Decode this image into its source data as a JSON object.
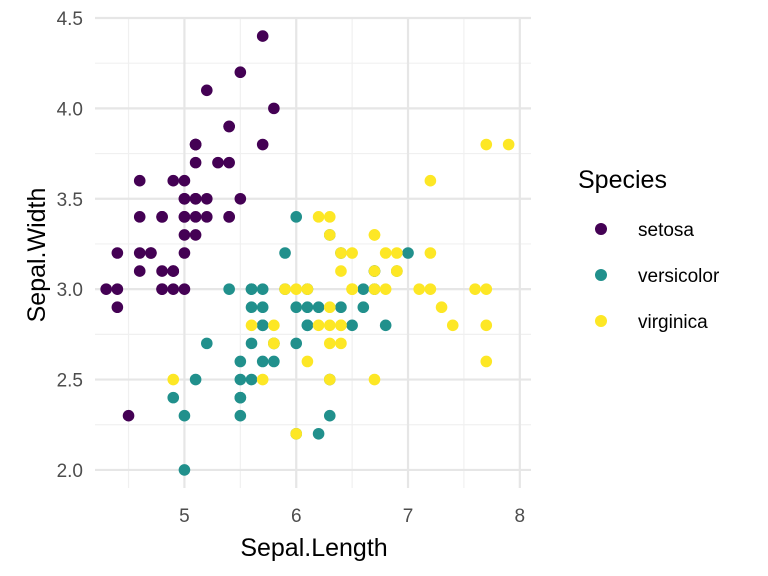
{
  "chart_data": {
    "type": "scatter",
    "xlabel": "Sepal.Length",
    "ylabel": "Sepal.Width",
    "xlim": [
      4.2,
      8.1
    ],
    "ylim": [
      1.9,
      4.5
    ],
    "x_ticks": [
      5,
      6,
      7,
      8
    ],
    "y_ticks": [
      2.0,
      2.5,
      3.0,
      3.5,
      4.0,
      4.5
    ],
    "x_tick_labels": [
      "5",
      "6",
      "7",
      "8"
    ],
    "y_tick_labels": [
      "2.0",
      "2.5",
      "3.0",
      "3.5",
      "4.0",
      "4.5"
    ],
    "grid": true,
    "legend": {
      "title": "Species",
      "position": "right",
      "entries": [
        {
          "label": "setosa",
          "color": "#440154"
        },
        {
          "label": "versicolor",
          "color": "#21908C"
        },
        {
          "label": "virginica",
          "color": "#FDE725"
        }
      ]
    },
    "series": [
      {
        "name": "setosa",
        "color": "#440154",
        "points": [
          [
            5.1,
            3.5
          ],
          [
            4.9,
            3.0
          ],
          [
            4.7,
            3.2
          ],
          [
            4.6,
            3.1
          ],
          [
            5.0,
            3.6
          ],
          [
            5.4,
            3.9
          ],
          [
            4.6,
            3.4
          ],
          [
            5.0,
            3.4
          ],
          [
            4.4,
            2.9
          ],
          [
            4.9,
            3.1
          ],
          [
            5.4,
            3.7
          ],
          [
            4.8,
            3.4
          ],
          [
            4.8,
            3.0
          ],
          [
            4.3,
            3.0
          ],
          [
            5.8,
            4.0
          ],
          [
            5.7,
            4.4
          ],
          [
            5.4,
            3.9
          ],
          [
            5.1,
            3.5
          ],
          [
            5.7,
            3.8
          ],
          [
            5.1,
            3.8
          ],
          [
            5.4,
            3.4
          ],
          [
            5.1,
            3.7
          ],
          [
            4.6,
            3.6
          ],
          [
            5.1,
            3.3
          ],
          [
            4.8,
            3.4
          ],
          [
            5.0,
            3.0
          ],
          [
            5.0,
            3.4
          ],
          [
            5.2,
            3.5
          ],
          [
            5.2,
            3.4
          ],
          [
            4.7,
            3.2
          ],
          [
            4.8,
            3.1
          ],
          [
            5.4,
            3.4
          ],
          [
            5.2,
            4.1
          ],
          [
            5.5,
            4.2
          ],
          [
            4.9,
            3.1
          ],
          [
            5.0,
            3.2
          ],
          [
            5.5,
            3.5
          ],
          [
            4.9,
            3.6
          ],
          [
            4.4,
            3.0
          ],
          [
            5.1,
            3.4
          ],
          [
            5.0,
            3.5
          ],
          [
            4.5,
            2.3
          ],
          [
            4.4,
            3.2
          ],
          [
            5.0,
            3.5
          ],
          [
            5.1,
            3.8
          ],
          [
            4.8,
            3.0
          ],
          [
            5.1,
            3.8
          ],
          [
            4.6,
            3.2
          ],
          [
            5.3,
            3.7
          ],
          [
            5.0,
            3.3
          ]
        ]
      },
      {
        "name": "versicolor",
        "color": "#21908C",
        "points": [
          [
            7.0,
            3.2
          ],
          [
            6.4,
            3.2
          ],
          [
            6.9,
            3.1
          ],
          [
            5.5,
            2.3
          ],
          [
            6.5,
            2.8
          ],
          [
            5.7,
            2.8
          ],
          [
            6.3,
            3.3
          ],
          [
            4.9,
            2.4
          ],
          [
            6.6,
            2.9
          ],
          [
            5.2,
            2.7
          ],
          [
            5.0,
            2.0
          ],
          [
            5.9,
            3.0
          ],
          [
            6.0,
            2.2
          ],
          [
            6.1,
            2.9
          ],
          [
            5.6,
            2.9
          ],
          [
            6.7,
            3.1
          ],
          [
            5.6,
            3.0
          ],
          [
            5.8,
            2.7
          ],
          [
            6.2,
            2.2
          ],
          [
            5.6,
            2.5
          ],
          [
            5.9,
            3.2
          ],
          [
            6.1,
            2.8
          ],
          [
            6.3,
            2.5
          ],
          [
            6.1,
            2.8
          ],
          [
            6.4,
            2.9
          ],
          [
            6.6,
            3.0
          ],
          [
            6.8,
            2.8
          ],
          [
            6.7,
            3.0
          ],
          [
            6.0,
            2.9
          ],
          [
            5.7,
            2.6
          ],
          [
            5.5,
            2.4
          ],
          [
            5.5,
            2.4
          ],
          [
            5.8,
            2.7
          ],
          [
            6.0,
            2.7
          ],
          [
            5.4,
            3.0
          ],
          [
            6.0,
            3.4
          ],
          [
            6.7,
            3.1
          ],
          [
            6.3,
            2.3
          ],
          [
            5.6,
            3.0
          ],
          [
            5.5,
            2.5
          ],
          [
            5.5,
            2.6
          ],
          [
            6.1,
            3.0
          ],
          [
            5.8,
            2.6
          ],
          [
            5.0,
            2.3
          ],
          [
            5.6,
            2.7
          ],
          [
            5.7,
            3.0
          ],
          [
            5.7,
            2.9
          ],
          [
            6.2,
            2.9
          ],
          [
            5.1,
            2.5
          ],
          [
            5.7,
            2.8
          ]
        ]
      },
      {
        "name": "virginica",
        "color": "#FDE725",
        "points": [
          [
            6.3,
            3.3
          ],
          [
            5.8,
            2.7
          ],
          [
            7.1,
            3.0
          ],
          [
            6.3,
            2.9
          ],
          [
            6.5,
            3.0
          ],
          [
            7.6,
            3.0
          ],
          [
            4.9,
            2.5
          ],
          [
            7.3,
            2.9
          ],
          [
            6.7,
            2.5
          ],
          [
            7.2,
            3.6
          ],
          [
            6.5,
            3.2
          ],
          [
            6.4,
            2.7
          ],
          [
            6.8,
            3.0
          ],
          [
            5.7,
            2.5
          ],
          [
            5.8,
            2.8
          ],
          [
            6.4,
            3.2
          ],
          [
            6.5,
            3.0
          ],
          [
            7.7,
            3.8
          ],
          [
            7.7,
            2.6
          ],
          [
            6.0,
            2.2
          ],
          [
            6.9,
            3.2
          ],
          [
            5.6,
            2.8
          ],
          [
            7.7,
            2.8
          ],
          [
            6.3,
            2.7
          ],
          [
            6.7,
            3.3
          ],
          [
            7.2,
            3.2
          ],
          [
            6.2,
            2.8
          ],
          [
            6.1,
            3.0
          ],
          [
            6.4,
            2.8
          ],
          [
            7.2,
            3.0
          ],
          [
            7.4,
            2.8
          ],
          [
            7.9,
            3.8
          ],
          [
            6.4,
            2.8
          ],
          [
            6.3,
            2.8
          ],
          [
            6.1,
            2.6
          ],
          [
            7.7,
            3.0
          ],
          [
            6.3,
            3.4
          ],
          [
            6.4,
            3.1
          ],
          [
            6.0,
            3.0
          ],
          [
            6.9,
            3.1
          ],
          [
            6.7,
            3.1
          ],
          [
            6.9,
            3.1
          ],
          [
            5.8,
            2.7
          ],
          [
            6.8,
            3.2
          ],
          [
            6.7,
            3.3
          ],
          [
            6.7,
            3.0
          ],
          [
            6.3,
            2.5
          ],
          [
            6.5,
            3.0
          ],
          [
            6.2,
            3.4
          ],
          [
            5.9,
            3.0
          ]
        ]
      }
    ]
  }
}
